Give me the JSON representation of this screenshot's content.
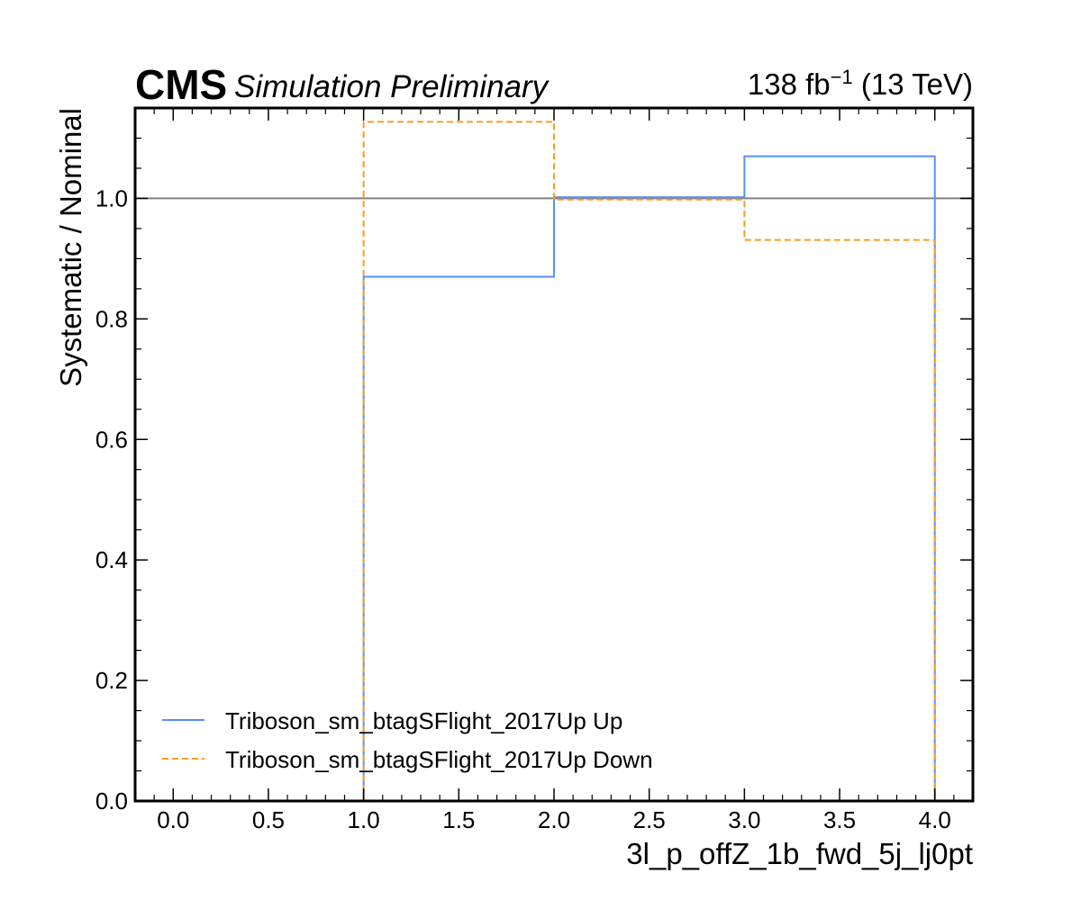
{
  "header": {
    "experiment": "CMS",
    "subtitle": "Simulation Preliminary",
    "lumi_prefix": "138 fb",
    "lumi_exponent": "−1",
    "lumi_suffix": " (13 TeV)"
  },
  "chart_data": {
    "type": "step",
    "xlabel": "3l_p_offZ_1b_fwd_5j_lj0pt",
    "ylabel": "Systematic / Nominal",
    "xlim": [
      -0.2,
      4.2
    ],
    "ylim": [
      0.0,
      1.15
    ],
    "xticks": [
      0.0,
      0.5,
      1.0,
      1.5,
      2.0,
      2.5,
      3.0,
      3.5,
      4.0
    ],
    "xtick_labels": [
      "0.0",
      "0.5",
      "1.0",
      "1.5",
      "2.0",
      "2.5",
      "3.0",
      "3.5",
      "4.0"
    ],
    "yticks": [
      0.0,
      0.2,
      0.4,
      0.6,
      0.8,
      1.0
    ],
    "ytick_labels": [
      "0.0",
      "0.2",
      "0.4",
      "0.6",
      "0.8",
      "1.0"
    ],
    "reference_line": 1.0,
    "bin_edges": [
      1.0,
      2.0,
      3.0,
      4.0
    ],
    "series": [
      {
        "name": "Triboson_sm_btagSFlight_2017Up Up",
        "values": [
          0.87,
          1.002,
          1.07
        ],
        "color": "#5790fc",
        "style": "solid"
      },
      {
        "name": "Triboson_sm_btagSFlight_2017Up Down",
        "values": [
          1.127,
          0.998,
          0.931
        ],
        "color": "#f89c20",
        "style": "dashed"
      }
    ],
    "reference_color": "#808080",
    "legend_position": "lower-left",
    "grid": false
  }
}
